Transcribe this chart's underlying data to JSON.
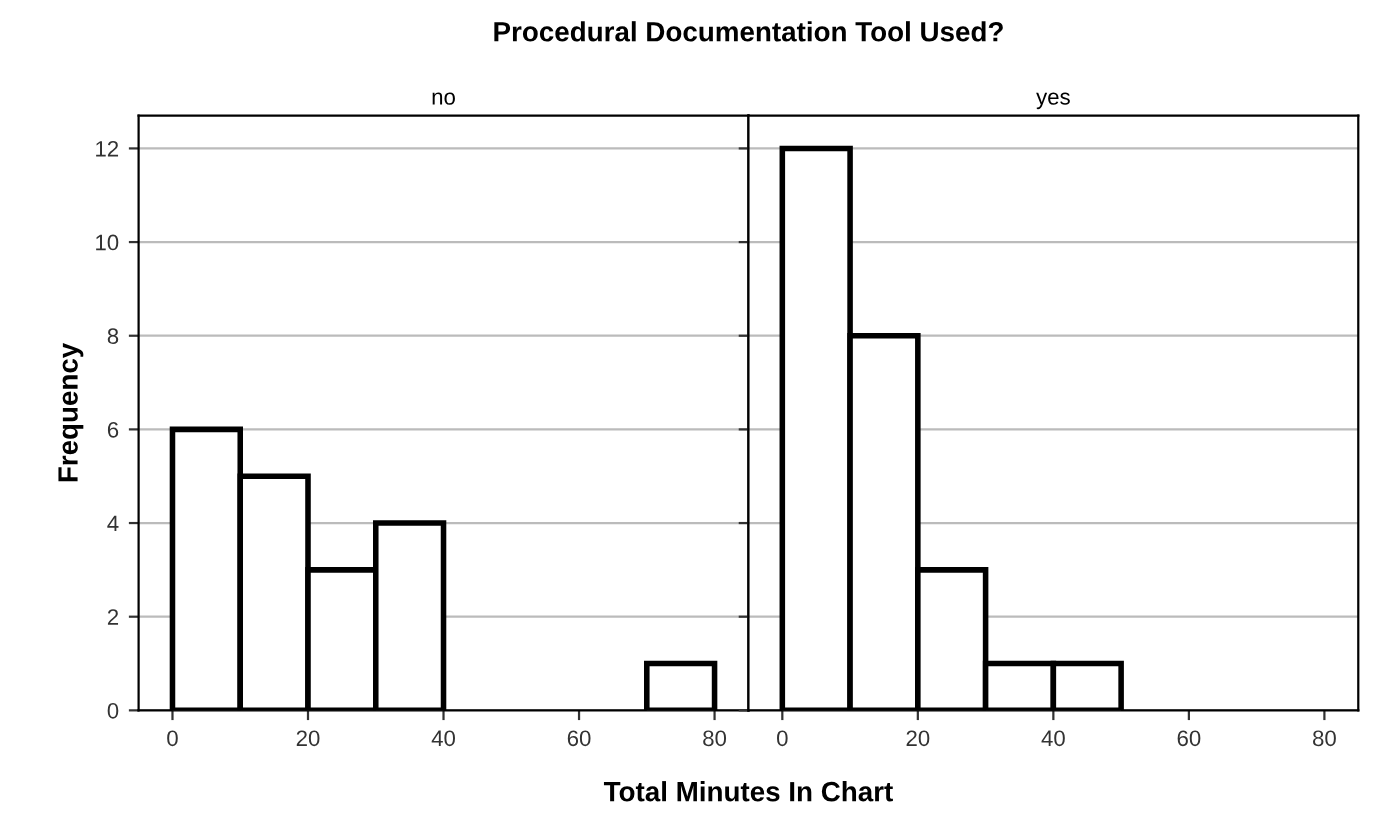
{
  "chart_data": [
    {
      "type": "histogram",
      "title": "no",
      "ylabel": "Frequency",
      "xlabel": "Total Minutes In Chart",
      "annotations": [
        "Procedural Documentation Tool Used?"
      ],
      "color": "#ffffff",
      "bins": [
        0,
        10,
        20,
        30,
        40,
        50,
        60,
        70,
        80
      ],
      "values": [
        6,
        5,
        3,
        4,
        null,
        null,
        null,
        1
      ],
      "xlim": [
        -5,
        85
      ],
      "xticks": [
        0,
        20,
        40,
        60,
        80
      ],
      "ylim": [
        0,
        12.7
      ],
      "yticks": [
        0,
        2,
        4,
        6,
        8,
        10,
        12
      ],
      "grid": "y"
    },
    {
      "type": "histogram",
      "title": "yes",
      "color": "#ffffff",
      "bins": [
        0,
        10,
        20,
        30,
        40,
        50
      ],
      "values": [
        12,
        8,
        3,
        1,
        1
      ],
      "xlim": [
        -5,
        85
      ],
      "xticks": [
        0,
        20,
        40,
        60,
        80
      ],
      "ylim": [
        0,
        12.7
      ],
      "yticks": [
        0,
        2,
        4,
        6,
        8,
        10,
        12
      ],
      "grid": "y",
      "tick_labels": "x"
    }
  ]
}
